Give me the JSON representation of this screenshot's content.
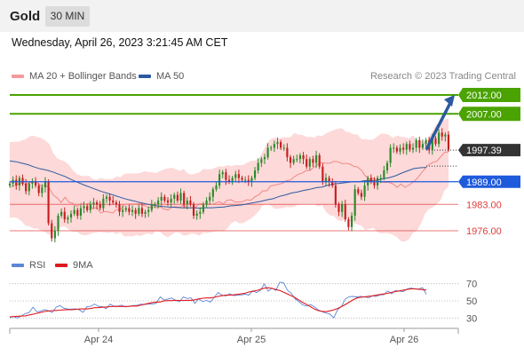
{
  "header": {
    "title": "Gold",
    "timeframe": "30 MIN"
  },
  "date_line": "Wednesday, April 26, 2023 3:21:45 AM CET",
  "legend": {
    "ma20_bb": "MA 20 + Bollinger Bands",
    "ma50": "MA 50",
    "credit": "Research © 2023 Trading Central",
    "rsi": "RSI",
    "ma9": "9MA"
  },
  "colors": {
    "bb_fill": "#fdd9d9",
    "ma20": "#f07f7f",
    "ma50": "#2c5aa0",
    "candle_up": "#2b8a2b",
    "candle_down": "#c81e1e",
    "resistance": "#4aa300",
    "pivot": "#1e5adc",
    "support": "#e03c3c",
    "price": "#333333",
    "arrow": "#2c5aa0",
    "rsi": "#5c87d6",
    "rsi_ma": "#e0191e"
  },
  "chart_data": [
    {
      "type": "line",
      "title": "Gold",
      "subtitle": "30 MIN",
      "x_ticks": [
        "Apr 24",
        "Apr 25",
        "Apr 26"
      ],
      "ylim": [
        1970,
        2016
      ],
      "levels": [
        {
          "label": "2012.00",
          "value": 2012.0,
          "kind": "resistance"
        },
        {
          "label": "2007.00",
          "value": 2007.0,
          "kind": "resistance"
        },
        {
          "label": "1997.39",
          "value": 1997.39,
          "kind": "last-price"
        },
        {
          "label": "1989.00",
          "value": 1989.0,
          "kind": "pivot"
        },
        {
          "label": "1983.00",
          "value": 1983.0,
          "kind": "support"
        },
        {
          "label": "1976.00",
          "value": 1976.0,
          "kind": "support"
        }
      ],
      "close": [
        1988.5,
        1989.5,
        1988,
        1990,
        1988.5,
        1986.5,
        1988.5,
        1989,
        1988,
        1986,
        1987.5,
        1989,
        1978,
        1974,
        1976,
        1980,
        1981,
        1979,
        1979.5,
        1980.5,
        1981.5,
        1980,
        1982,
        1982.5,
        1981.5,
        1983,
        1983.5,
        1983,
        1982,
        1984.5,
        1985,
        1984,
        1983.5,
        1983,
        1981,
        1981.5,
        1982,
        1981,
        1981.5,
        1980.5,
        1982,
        1980.5,
        1981,
        1981.5,
        1983,
        1983,
        1984,
        1985,
        1984,
        1983.5,
        1984.5,
        1985.5,
        1984,
        1986,
        1983,
        1984,
        1983,
        1980,
        1980.5,
        1981,
        1983,
        1984,
        1985,
        1987,
        1988,
        1991,
        1991.5,
        1989.5,
        1989,
        1990,
        1991,
        1990,
        1989.5,
        1989.5,
        1989,
        1990,
        1992,
        1994,
        1995,
        1995.5,
        1998,
        1998,
        1999,
        1999.5,
        1998,
        1998,
        1995.5,
        1994,
        1995,
        1995,
        1996,
        1995,
        1993,
        1995,
        1994,
        1996,
        1993,
        1989,
        1990,
        1989,
        1988,
        1983,
        1981,
        1983,
        1979,
        1977,
        1980,
        1987,
        1986,
        1985,
        1988,
        1990,
        1989,
        1988,
        1990,
        1990,
        1992,
        1994,
        1998,
        1998,
        1997,
        1998,
        1997.5,
        1999,
        1997.5,
        1998,
        2000,
        1998,
        1999,
        2000,
        1997.5,
        2000.5,
        1999,
        2002,
        2001,
        2001.5,
        1997.5
      ],
      "ma20": [
        1987.6,
        1987.9,
        1988.3,
        1988.6,
        1988.3,
        1988.7,
        1989.1,
        1988.7,
        1987.8,
        1988.1,
        1987.3,
        1985.4,
        1984.7,
        1983.5,
        1984.9,
        1983.5,
        1983.3,
        1982.4,
        1983.3,
        1983.0,
        1983.3,
        1981.8,
        1982.2,
        1980.7,
        1981.1,
        1981.0,
        1980.7,
        1981.6,
        1981.6,
        1983.0,
        1983.1,
        1983.1,
        1983.1,
        1983.3,
        1982.7,
        1982.2,
        1982.2,
        1982.1,
        1982.4,
        1981.8,
        1981.5,
        1982.2,
        1982.4,
        1982.2,
        1982.8,
        1982.1,
        1982.0,
        1982.2,
        1983.2,
        1983.1,
        1982.9,
        1983.0,
        1983.3,
        1983.7,
        1983.1,
        1984.1,
        1984.2,
        1983.6,
        1983.6,
        1983.8,
        1984.2,
        1984.1,
        1985.0,
        1985.5,
        1986.6,
        1986.6,
        1987.9,
        1988.1,
        1988.3,
        1988.6,
        1989.3,
        1989.4,
        1990.3,
        1991.0,
        1991.3,
        1992.0,
        1992.0,
        1992.9,
        1993.7,
        1994.1,
        1993.9,
        1993.9,
        1994.4,
        1994.3,
        1993.8,
        1993.9,
        1993.7,
        1993.1,
        1992.9,
        1992.0,
        1990.5,
        1989.7,
        1989.9,
        1989.3,
        1988.9,
        1988.8,
        1988.8,
        1988.4,
        1987.5,
        1988.4,
        1987.5,
        1988.1,
        1988.9,
        1989.8,
        1991.1,
        1992.4,
        1993.5,
        1994.1,
        1994.4,
        1995.6,
        1996.8,
        1996.9
      ],
      "bb_upper": [
        1999.5,
        1999.6,
        1999.6,
        1999.9,
        2000.3,
        2001.0,
        2001.2,
        2000.8,
        2000.6,
        1999.9,
        1999.0,
        1996.6,
        1995.2,
        1994.7,
        1994.3,
        1993.4,
        1992.0,
        1991.0,
        1990.6,
        1990.5,
        1990.6,
        1989.7,
        1989.5,
        1990.0,
        1989.7,
        1989.7,
        1989.7,
        1990.4,
        1990.2,
        1991.1,
        1991.2,
        1991.2,
        1991.2,
        1991.3,
        1991.8,
        1991.6,
        1991.5,
        1991.3,
        1991.8,
        1992.3,
        1992.5,
        1992.7,
        1992.3,
        1991.9,
        1992.4,
        1991.2,
        1990.9,
        1991.2,
        1991.5,
        1992.4,
        1992.3,
        1992.3,
        1992.7,
        1993.1,
        1993.0,
        1993.4,
        1993.1,
        1993.4,
        1993.4,
        1993.4,
        1994.0,
        1994.5,
        1994.6,
        1995.1,
        1997.0,
        1999.1,
        2000.3,
        2000.7,
        2000.4,
        2000.7,
        2000.8,
        2000.8,
        2001.9,
        2001.5,
        2001.4,
        2000.9,
        2000.9,
        2000.7,
        2001.3,
        2001.1,
        2001.8,
        2002.3,
        2002.7,
        2003.0,
        2003.2,
        2002.3,
        2002.1,
        2001.5,
        2001.5,
        2000.2,
        2000.3,
        2000.1,
        2000.2,
        2001.0,
        2001.8,
        2001.7,
        2001.4,
        2000.6,
        2001.3,
        2000.9,
        2000.8,
        2000.5,
        2001.3,
        2000.1,
        1999.9,
        1999.5,
        2000.8,
        2002.5,
        2004.2,
        2004.8,
        2005.4,
        2005.8
      ],
      "bb_lower": [
        1979.4,
        1979.6,
        1979.3,
        1978.5,
        1977.3,
        1977.2,
        1976.6,
        1976.6,
        1976.0,
        1975.6,
        1974.9,
        1975.8,
        1976.4,
        1977.0,
        1977.1,
        1976.3,
        1975.7,
        1975.7,
        1975.0,
        1974.8,
        1975.0,
        1975.4,
        1975.5,
        1975.7,
        1975.5,
        1975.4,
        1975.6,
        1975.1,
        1975.6,
        1974.5,
        1974.6,
        1974.5,
        1974.9,
        1974.6,
        1975.0,
        1975.3,
        1975.0,
        1975.9,
        1975.7,
        1974.8,
        1974.3,
        1975.0,
        1975.6,
        1975.4,
        1974.7,
        1974.9,
        1975.3,
        1975.1,
        1974.7,
        1975.5,
        1975.4,
        1975.6,
        1975.8,
        1975.9,
        1975.8,
        1976.6,
        1977.9,
        1978.6,
        1978.0,
        1978.0,
        1978.6,
        1979.2,
        1980.1,
        1981.2,
        1982.7,
        1983.1,
        1982.7,
        1981.8,
        1981.9,
        1982.0,
        1982.3,
        1982.2,
        1982.4,
        1983.0,
        1983.0,
        1983.1,
        1983.1,
        1983.1,
        1982.5,
        1982.8,
        1981.0,
        1980.1,
        1979.9,
        1978.8,
        1978.5,
        1979.4,
        1978.6,
        1978.0,
        1977.7,
        1977.3,
        1976.2,
        1976.5,
        1976.8,
        1975.7,
        1975.3,
        1975.4,
        1975.3,
        1974.9,
        1974.3,
        1973.2,
        1973.1,
        1973.8,
        1975.4,
        1976.0,
        1977.8,
        1980.4,
        1981.7,
        1982.2,
        1983.0,
        1984.1,
        1986.7,
        1987.7
      ],
      "ma50": [
        1994.5,
        1994.3,
        1993.9,
        1993.5,
        1992.9,
        1992.4,
        1992.1,
        1991.6,
        1991.0,
        1990.4,
        1989.6,
        1988.9,
        1988.2,
        1987.6,
        1987.0,
        1986.4,
        1985.9,
        1985.4,
        1984.9,
        1984.4,
        1984.0,
        1983.6,
        1983.2,
        1982.9,
        1982.6,
        1982.4,
        1982.3,
        1982.2,
        1982.1,
        1982.1,
        1982.1,
        1982.0,
        1982.1,
        1982.1,
        1982.2,
        1982.3,
        1982.6,
        1982.7,
        1982.9,
        1983.2,
        1983.5,
        1983.8,
        1984.2,
        1984.5,
        1985.1,
        1985.5,
        1986.0,
        1986.3,
        1986.7,
        1987.0,
        1987.4,
        1987.6,
        1988.1,
        1988.4,
        1988.6,
        1988.8,
        1989.0,
        1989.0,
        1989.3,
        1989.3,
        1989.4,
        1989.8,
        1990.1,
        1990.6,
        1991.3,
        1991.9,
        1992.5,
        1992.7,
        1992.8
      ],
      "projection": {
        "from": 1997.5,
        "to": 2012.0
      }
    },
    {
      "type": "line",
      "title": "RSI",
      "ylim": [
        20,
        80
      ],
      "y_ticks": [
        70,
        50,
        30
      ],
      "series": [
        {
          "name": "RSI",
          "values": [
            30.6,
            31.8,
            29.9,
            32.4,
            35.1,
            36.5,
            42.6,
            37.4,
            37.9,
            39.8,
            38.6,
            36.5,
            42.6,
            44.5,
            41.5,
            40.5,
            40.4,
            40.8,
            39.6,
            36.7,
            43.2,
            43.7,
            46.3,
            43.6,
            43.3,
            40.9,
            46.2,
            43.8,
            43.8,
            45.0,
            43.0,
            43.8,
            44.3,
            44.8,
            46.2,
            45.8,
            46.4,
            46.3,
            47.2,
            54.8,
            51.0,
            52.2,
            53.3,
            50.7,
            49.0,
            54.5,
            52.8,
            53.5,
            47.1,
            52.4,
            49.1,
            50.5,
            48.6,
            54.0,
            59.7,
            56.8,
            55.7,
            58.4,
            56.2,
            56.5,
            56.8,
            57.9,
            56.6,
            62.0,
            59.6,
            62.4,
            69.8,
            61.3,
            64.8,
            62.2,
            71.7,
            71.2,
            62.3,
            58.9,
            52.2,
            49.0,
            45.2,
            43.9,
            45.8,
            43.0,
            39.4,
            37.3,
            35.8,
            34.6,
            30.2,
            39.7,
            43.6,
            52.2,
            54.9,
            55.2,
            54.7,
            55.3,
            54.5,
            53.6,
            55.9,
            55.2,
            56.9,
            57.1,
            61.6,
            58.3,
            62.1,
            61.5,
            60.8,
            63.8,
            64.9,
            64.0,
            63.8,
            65.4,
            57.7
          ]
        },
        {
          "name": "9MA",
          "values": [
            31.4,
            31.7,
            32.0,
            32.3,
            32.5,
            33.6,
            34.4,
            35.5,
            36.4,
            37.6,
            38.2,
            38.6,
            38.8,
            39.1,
            39.6,
            39.8,
            39.8,
            40.0,
            40.5,
            40.6,
            40.6,
            41.1,
            42.0,
            42.1,
            42.6,
            42.9,
            43.3,
            43.6,
            43.5,
            43.5,
            43.5,
            43.6,
            44.1,
            44.0,
            44.9,
            46.1,
            47.1,
            48.1,
            48.5,
            48.8,
            49.9,
            50.3,
            50.3,
            50.6,
            50.5,
            50.4,
            50.6,
            50.6,
            51.2,
            52.3,
            53.1,
            53.4,
            53.4,
            54.1,
            55.2,
            56.0,
            56.6,
            56.6,
            57.0,
            57.6,
            58.2,
            58.9,
            60.3,
            61.1,
            62.0,
            63.4,
            64.8,
            65.3,
            64.5,
            63.3,
            62.1,
            60.0,
            58.1,
            55.9,
            53.6,
            50.8,
            48.0,
            45.7,
            43.2,
            40.4,
            38.6,
            37.8,
            37.4,
            38.3,
            39.6,
            41.1,
            43.3,
            45.8,
            48.4,
            51.1,
            53.4,
            54.1,
            54.8,
            55.3,
            55.8,
            56.6,
            57.4,
            58.1,
            58.8,
            59.9,
            60.9,
            61.6,
            62.5,
            63.2,
            64.0,
            64.1,
            63.6,
            63.1,
            62.6
          ]
        }
      ]
    }
  ]
}
